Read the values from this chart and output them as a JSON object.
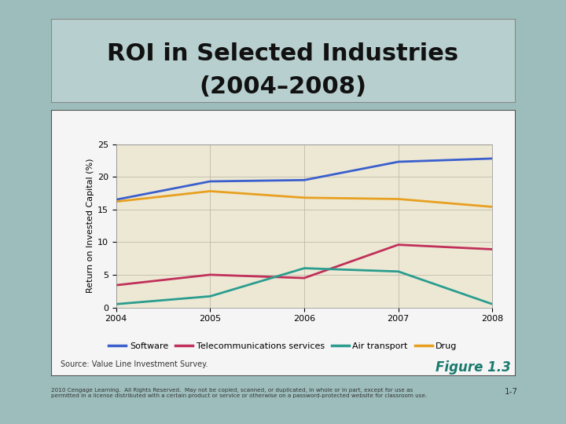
{
  "title_line1": "ROI in Selected Industries",
  "title_line2": "(2004–2008)",
  "ylabel": "Return on Invested Capital (%)",
  "years": [
    2004,
    2005,
    2006,
    2007,
    2008
  ],
  "series": {
    "Software": [
      16.5,
      19.3,
      19.5,
      22.3,
      22.8
    ],
    "Telecommunications services": [
      3.4,
      5.0,
      4.5,
      9.6,
      8.9
    ],
    "Air transport": [
      0.5,
      1.7,
      6.0,
      5.5,
      0.5
    ],
    "Drug": [
      16.2,
      17.8,
      16.8,
      16.6,
      15.4
    ]
  },
  "colors": {
    "Software": "#3a5fcd",
    "Telecommunications services": "#c0305a",
    "Air transport": "#2a9d8f",
    "Drug": "#e8a020"
  },
  "ylim": [
    0,
    25
  ],
  "yticks": [
    0,
    5,
    10,
    15,
    20,
    25
  ],
  "background_outer": "#9dbdbd",
  "background_chart": "#ede8d4",
  "background_box": "#f5f5f5",
  "title_bg": "#b8cfcf",
  "axis_label_fontsize": 8,
  "tick_fontsize": 8,
  "legend_fontsize": 8,
  "source_text": "Source: Value Line Investment Survey.",
  "figure_label": "Figure 1.3",
  "bottom_text": "2010 Cengage Learning.  All Rights Reserved.  May not be copied, scanned, or duplicated, in whole or in part, except for use as\npermitted in a license distributed with a certain product or service or otherwise on a password-protected website for classroom use.",
  "page_num": "1-7"
}
